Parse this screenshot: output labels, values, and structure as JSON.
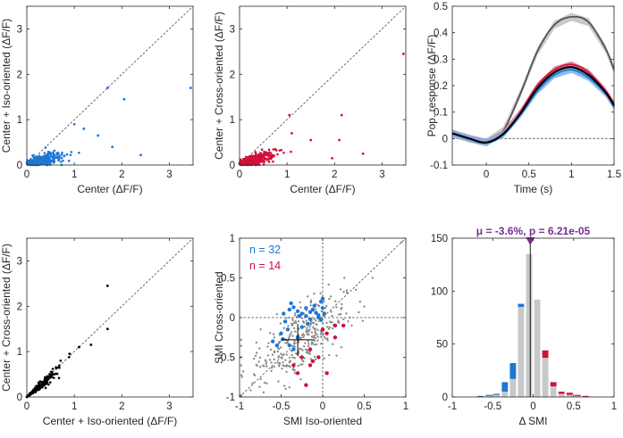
{
  "colors": {
    "iso": "#1f77d4",
    "cross": "#d0103a",
    "both": "#000000",
    "gray_dots": "#8c8c8c",
    "control": "#555555",
    "hist_bar": "#c8c8c8",
    "mu_text": "#7b2d8e"
  },
  "chart_data": [
    {
      "id": "a",
      "type": "scatter",
      "xlabel": "Center (ΔF/F)",
      "ylabel": "Center + Iso-oriented (ΔF/F)",
      "xlim": [
        0,
        3.5
      ],
      "ylim": [
        0,
        3.5
      ],
      "xticks": [
        "0",
        "1",
        "2",
        "3"
      ],
      "yticks": [
        "0",
        "1",
        "2",
        "3"
      ],
      "identity_line": true,
      "color": "#1f77d4",
      "outliers": [
        [
          3.45,
          1.7
        ],
        [
          2.05,
          1.45
        ],
        [
          1.7,
          1.7
        ],
        [
          1.5,
          0.65
        ],
        [
          1.8,
          0.4
        ],
        [
          2.4,
          0.22
        ],
        [
          1.2,
          0.8
        ],
        [
          1.0,
          0.9
        ]
      ],
      "cloud": {
        "x_center": 0.3,
        "x_spread": 0.35,
        "slope": 0.3,
        "n": 340
      }
    },
    {
      "id": "b",
      "type": "scatter",
      "xlabel": "Center (ΔF/F)",
      "ylabel": "Center + Cross-oriented (ΔF/F)",
      "xlim": [
        0,
        3.5
      ],
      "ylim": [
        0,
        3.5
      ],
      "xticks": [
        "0",
        "1",
        "2",
        "3"
      ],
      "yticks": [
        "0",
        "1",
        "2",
        "3"
      ],
      "identity_line": true,
      "color": "#d0103a",
      "outliers": [
        [
          3.45,
          2.45
        ],
        [
          2.15,
          1.1
        ],
        [
          2.1,
          0.55
        ],
        [
          2.6,
          0.25
        ],
        [
          1.95,
          0.15
        ],
        [
          1.05,
          1.1
        ],
        [
          1.1,
          0.7
        ],
        [
          1.5,
          0.55
        ]
      ],
      "cloud": {
        "x_center": 0.3,
        "x_spread": 0.35,
        "slope": 0.35,
        "n": 360
      }
    },
    {
      "id": "c",
      "type": "line",
      "xlabel": "Time (s)",
      "ylabel": "Pop. response (ΔF/F)",
      "xlim": [
        -0.4,
        1.5
      ],
      "ylim": [
        -0.1,
        0.5
      ],
      "xticks": [
        "0",
        "0.5",
        "1",
        "1.5"
      ],
      "yticks": [
        "-0.1",
        "0",
        "0.1",
        "0.2",
        "0.3",
        "0.4",
        "0.5"
      ],
      "zero_line": true,
      "x": [
        -0.4,
        -0.2,
        0,
        0.2,
        0.4,
        0.6,
        0.8,
        1.0,
        1.2,
        1.4,
        1.5
      ],
      "series": [
        {
          "color": "#555555",
          "band": "#bfbfbf",
          "values": [
            0.02,
            0.0,
            -0.015,
            0.03,
            0.17,
            0.33,
            0.43,
            0.46,
            0.44,
            0.34,
            0.26
          ],
          "err": 0.015
        },
        {
          "color": "#d0103a",
          "band": "#e07090",
          "values": [
            0.02,
            0.0,
            -0.015,
            0.02,
            0.1,
            0.2,
            0.26,
            0.28,
            0.25,
            0.18,
            0.13
          ],
          "err": 0.012
        },
        {
          "color": "#1f77d4",
          "band": "#7ab0e8",
          "values": [
            0.02,
            0.0,
            -0.015,
            0.015,
            0.09,
            0.18,
            0.24,
            0.26,
            0.23,
            0.17,
            0.12
          ],
          "err": 0.012
        },
        {
          "color": "#000000",
          "band": null,
          "values": [
            0.02,
            0.0,
            -0.015,
            0.018,
            0.095,
            0.19,
            0.25,
            0.27,
            0.24,
            0.175,
            0.125
          ],
          "err": 0
        }
      ]
    },
    {
      "id": "d",
      "type": "scatter",
      "xlabel": "Center + Iso-oriented (ΔF/F)",
      "ylabel": "Center + Cross-oriented (ΔF/F)",
      "xlim": [
        0,
        3.5
      ],
      "ylim": [
        0,
        3.5
      ],
      "xticks": [
        "0",
        "1",
        "2",
        "3"
      ],
      "yticks": [
        "0",
        "1",
        "2",
        "3"
      ],
      "identity_line": true,
      "color": "#000000",
      "outliers": [
        [
          1.7,
          2.45
        ],
        [
          1.7,
          1.5
        ],
        [
          1.1,
          1.1
        ],
        [
          1.35,
          1.15
        ],
        [
          0.9,
          0.95
        ]
      ],
      "cloud": {
        "x_center": 0.25,
        "x_spread": 0.3,
        "slope": 1.0,
        "n": 300
      }
    },
    {
      "id": "e",
      "type": "scatter",
      "xlabel": "SMI Iso-oriented",
      "ylabel": "SMI Cross-oriented",
      "xlim": [
        -1,
        1
      ],
      "ylim": [
        -1,
        1
      ],
      "xticks": [
        "-1",
        "-0.5",
        "0",
        "0.5",
        "1"
      ],
      "yticks": [
        "-1",
        "-0.5",
        "0",
        "0.5",
        "1"
      ],
      "identity_line": true,
      "zero_lines": true,
      "legend": [
        {
          "text": "n = 32",
          "color": "#1f77d4"
        },
        {
          "text": "n = 14",
          "color": "#d0103a"
        }
      ],
      "mean_cross": {
        "x": -0.3,
        "y": -0.28,
        "sx": 0.2,
        "sy": 0.2
      },
      "blue_points": [
        [
          -0.4,
          0.1
        ],
        [
          -0.35,
          0.13
        ],
        [
          -0.25,
          0.05
        ],
        [
          -0.2,
          0.02
        ],
        [
          -0.15,
          0.07
        ],
        [
          -0.05,
          0.03
        ],
        [
          -0.1,
          0.15
        ],
        [
          -0.02,
          0.2
        ],
        [
          0.0,
          0.24
        ],
        [
          -0.3,
          0.08
        ],
        [
          -0.45,
          -0.05
        ],
        [
          -0.5,
          -0.2
        ],
        [
          -0.6,
          -0.3
        ],
        [
          -0.55,
          -0.35
        ],
        [
          -0.4,
          -0.35
        ],
        [
          -0.35,
          -0.4
        ],
        [
          -0.3,
          -0.25
        ],
        [
          -0.25,
          -0.12
        ],
        [
          -0.18,
          -0.08
        ],
        [
          -0.12,
          0.1
        ],
        [
          -0.08,
          0.06
        ],
        [
          0.0,
          0.12
        ],
        [
          0.02,
          0.05
        ],
        [
          -0.02,
          -0.03
        ],
        [
          -0.28,
          0.02
        ],
        [
          -0.42,
          -0.15
        ],
        [
          -0.48,
          -0.27
        ],
        [
          -0.2,
          0.12
        ],
        [
          -0.15,
          -0.02
        ],
        [
          -0.05,
          0.0
        ],
        [
          -0.38,
          0.18
        ],
        [
          -0.47,
          0.05
        ]
      ],
      "red_points": [
        [
          -0.35,
          -0.6
        ],
        [
          -0.15,
          -0.6
        ],
        [
          -0.12,
          -0.55
        ],
        [
          0.05,
          -0.2
        ],
        [
          0.15,
          -0.1
        ],
        [
          0.0,
          -0.15
        ],
        [
          -0.2,
          -0.85
        ],
        [
          -0.05,
          -0.5
        ],
        [
          -0.15,
          -0.4
        ],
        [
          -0.3,
          -0.7
        ],
        [
          0.05,
          -0.7
        ],
        [
          0.15,
          -0.25
        ],
        [
          -0.25,
          -0.5
        ],
        [
          0.25,
          -0.1
        ]
      ],
      "gray_cloud": {
        "x_center": -0.3,
        "y_center": -0.28,
        "sx": 0.28,
        "sy": 0.28,
        "rho": 0.6,
        "n": 320
      }
    },
    {
      "id": "f",
      "type": "bar",
      "xlabel": "Δ SMI",
      "xlim": [
        -1,
        1
      ],
      "ylim": [
        0,
        150
      ],
      "xticks": [
        "-1",
        "-0.5",
        "0",
        "0.5",
        "1"
      ],
      "yticks": [
        "0",
        "50",
        "100",
        "150"
      ],
      "annotation": "μ = -3.6%, p = 6.21e-05",
      "mean_marker": -0.036,
      "bin_width": 0.1,
      "bins": [
        -0.65,
        -0.55,
        -0.45,
        -0.35,
        -0.25,
        -0.15,
        -0.05,
        0.05,
        0.15,
        0.25,
        0.35,
        0.45,
        0.55,
        0.65
      ],
      "gray": [
        0,
        1,
        2,
        5,
        17,
        85,
        135,
        92,
        37,
        10,
        3,
        2,
        1,
        0
      ],
      "blue": [
        1,
        1,
        1,
        9,
        15,
        3,
        0,
        0,
        0,
        0,
        0,
        0,
        0,
        0
      ],
      "red": [
        0,
        0,
        0,
        0,
        0,
        0,
        0,
        0,
        7,
        4,
        2,
        2,
        1,
        1
      ]
    }
  ]
}
